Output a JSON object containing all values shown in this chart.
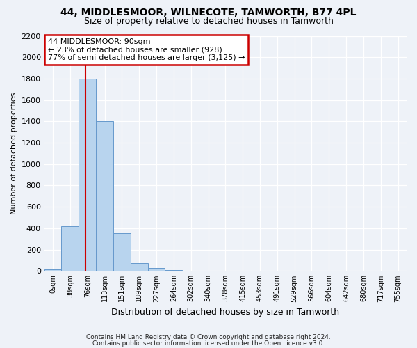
{
  "title1": "44, MIDDLESMOOR, WILNECOTE, TAMWORTH, B77 4PL",
  "title2": "Size of property relative to detached houses in Tamworth",
  "xlabel": "Distribution of detached houses by size in Tamworth",
  "ylabel": "Number of detached properties",
  "footer1": "Contains HM Land Registry data © Crown copyright and database right 2024.",
  "footer2": "Contains public sector information licensed under the Open Licence v3.0.",
  "bin_labels": [
    "0sqm",
    "38sqm",
    "76sqm",
    "113sqm",
    "151sqm",
    "189sqm",
    "227sqm",
    "264sqm",
    "302sqm",
    "340sqm",
    "378sqm",
    "415sqm",
    "453sqm",
    "491sqm",
    "529sqm",
    "566sqm",
    "604sqm",
    "642sqm",
    "680sqm",
    "717sqm",
    "755sqm"
  ],
  "bar_values": [
    15,
    420,
    1800,
    1400,
    355,
    75,
    25,
    10,
    0,
    0,
    0,
    0,
    0,
    0,
    0,
    0,
    0,
    0,
    0,
    0,
    0
  ],
  "bar_color": "#b8d4ee",
  "bar_edge_color": "#6699cc",
  "red_line_x": 2.37,
  "annotation_title": "44 MIDDLESMOOR: 90sqm",
  "annotation_line1": "← 23% of detached houses are smaller (928)",
  "annotation_line2": "77% of semi-detached houses are larger (3,125) →",
  "ylim": [
    0,
    2200
  ],
  "yticks": [
    0,
    200,
    400,
    600,
    800,
    1000,
    1200,
    1400,
    1600,
    1800,
    2000,
    2200
  ],
  "bg_color": "#eef2f8",
  "grid_color": "#ffffff",
  "annotation_box_bg": "#ffffff",
  "annotation_box_edge": "#cc0000"
}
